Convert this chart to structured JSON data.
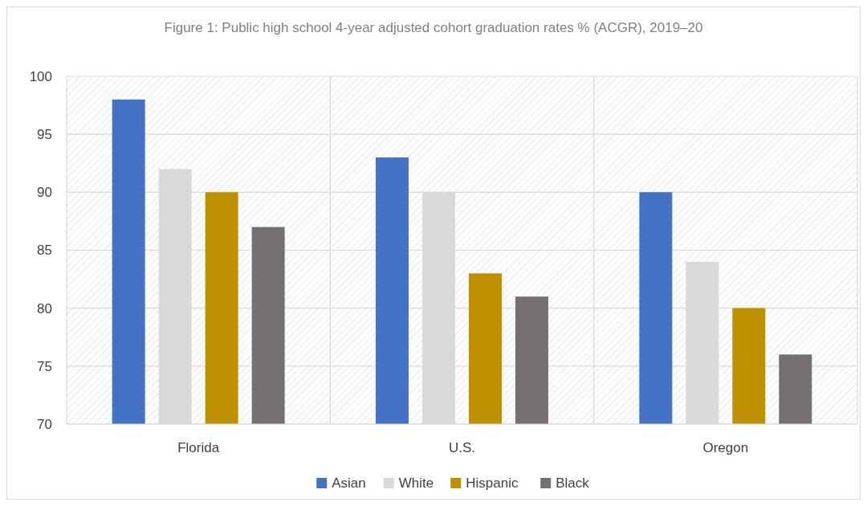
{
  "chart_data": {
    "type": "bar",
    "title": "Figure 1: Public high school 4-year adjusted cohort graduation rates % (ACGR), 2019–20",
    "categories": [
      "Florida",
      "U.S.",
      "Oregon"
    ],
    "series": [
      {
        "name": "Asian",
        "color": "#4472c4",
        "values": [
          98,
          93,
          90
        ]
      },
      {
        "name": "White",
        "color": "#d9d9d9",
        "values": [
          92,
          90,
          84
        ]
      },
      {
        "name": "Hispanic",
        "color": "#bf9000",
        "values": [
          90,
          83,
          80
        ]
      },
      {
        "name": "Black",
        "color": "#767171",
        "values": [
          87,
          81,
          76
        ]
      }
    ],
    "ylim": [
      70,
      100
    ],
    "yticks": [
      70,
      75,
      80,
      85,
      90,
      95,
      100
    ],
    "grid": true,
    "legend": "bottom"
  }
}
